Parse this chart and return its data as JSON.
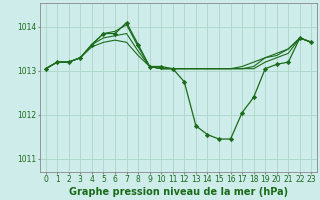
{
  "background_color": "#ceecea",
  "grid_color": "#b0d8cc",
  "line_color": "#1a6b1a",
  "marker_color": "#1a6b1a",
  "title": "Graphe pression niveau de la mer (hPa)",
  "ylabel_ticks": [
    1011,
    1012,
    1013,
    1014
  ],
  "xlim": [
    -0.5,
    23.5
  ],
  "ylim": [
    1010.7,
    1014.55
  ],
  "series": [
    {
      "x": [
        0,
        1,
        2,
        3,
        4,
        5,
        6,
        7,
        8,
        9,
        10,
        11,
        12,
        13,
        14,
        15,
        16,
        17,
        18,
        19,
        20,
        21,
        22,
        23
      ],
      "y": [
        1013.05,
        1013.2,
        1013.2,
        1013.3,
        1013.6,
        1013.85,
        1013.85,
        1014.1,
        1013.6,
        1013.1,
        1013.1,
        1013.05,
        1012.75,
        1011.75,
        1011.55,
        1011.45,
        1011.45,
        1012.05,
        1012.4,
        1013.05,
        1013.15,
        1013.2,
        1013.75,
        1013.65
      ],
      "has_markers": true
    },
    {
      "x": [
        0,
        1,
        2,
        3,
        4,
        5,
        6,
        7,
        8,
        9,
        10,
        11,
        12,
        13,
        14,
        15,
        16,
        17,
        18,
        19,
        20,
        21,
        22,
        23
      ],
      "y": [
        1013.05,
        1013.2,
        1013.2,
        1013.3,
        1013.6,
        1013.85,
        1013.9,
        1014.05,
        1013.55,
        1013.1,
        1013.05,
        1013.05,
        1013.05,
        1013.05,
        1013.05,
        1013.05,
        1013.05,
        1013.05,
        1013.05,
        1013.2,
        1013.3,
        1013.4,
        1013.75,
        1013.65
      ],
      "has_markers": false
    },
    {
      "x": [
        0,
        1,
        2,
        3,
        4,
        5,
        6,
        7,
        8,
        9,
        10,
        11,
        12,
        13,
        14,
        15,
        16,
        17,
        18,
        19,
        20,
        21,
        22,
        23
      ],
      "y": [
        1013.05,
        1013.2,
        1013.2,
        1013.3,
        1013.6,
        1013.75,
        1013.8,
        1013.85,
        1013.45,
        1013.1,
        1013.05,
        1013.05,
        1013.05,
        1013.05,
        1013.05,
        1013.05,
        1013.05,
        1013.05,
        1013.1,
        1013.3,
        1013.35,
        1013.5,
        1013.75,
        1013.65
      ],
      "has_markers": false
    },
    {
      "x": [
        0,
        1,
        2,
        3,
        4,
        5,
        6,
        7,
        8,
        9,
        10,
        11,
        12,
        13,
        14,
        15,
        16,
        17,
        18,
        19,
        20,
        21,
        22,
        23
      ],
      "y": [
        1013.05,
        1013.2,
        1013.2,
        1013.3,
        1013.55,
        1013.65,
        1013.7,
        1013.65,
        1013.35,
        1013.1,
        1013.05,
        1013.05,
        1013.05,
        1013.05,
        1013.05,
        1013.05,
        1013.05,
        1013.1,
        1013.2,
        1013.3,
        1013.4,
        1013.5,
        1013.75,
        1013.65
      ],
      "has_markers": false
    }
  ],
  "xtick_labels": [
    "0",
    "1",
    "2",
    "3",
    "4",
    "5",
    "6",
    "7",
    "8",
    "9",
    "10",
    "11",
    "12",
    "13",
    "14",
    "15",
    "16",
    "17",
    "18",
    "19",
    "20",
    "21",
    "22",
    "23"
  ],
  "tick_fontsize": 5.5,
  "title_fontsize": 7.0,
  "title_bold": true
}
